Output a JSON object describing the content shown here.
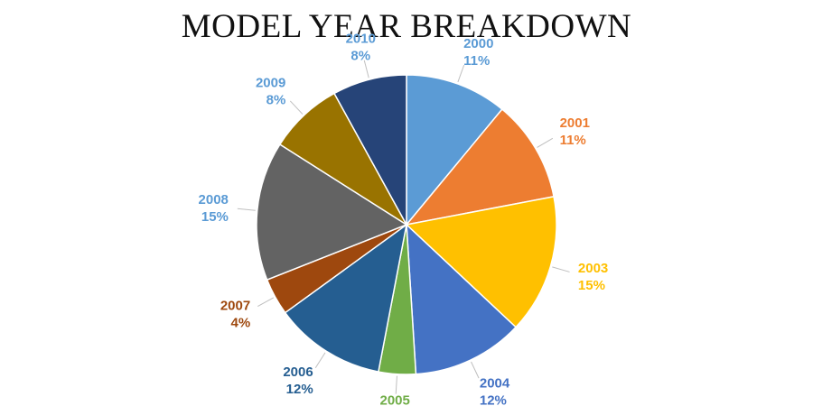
{
  "chart_data": {
    "type": "pie",
    "title": "MODEL YEAR BREAKDOWN",
    "slices": [
      {
        "label": "2000",
        "value": 11,
        "percent": "11%",
        "color": "#5b9bd5",
        "label_color": "#5b9bd5"
      },
      {
        "label": "2001",
        "value": 11,
        "percent": "11%",
        "color": "#ed7d31",
        "label_color": "#ed7d31"
      },
      {
        "label": "2003",
        "value": 15,
        "percent": "15%",
        "color": "#ffc000",
        "label_color": "#ffc000"
      },
      {
        "label": "2004",
        "value": 12,
        "percent": "12%",
        "color": "#4472c4",
        "label_color": "#4472c4"
      },
      {
        "label": "2005",
        "value": 4,
        "percent": "4%",
        "color": "#70ad47",
        "label_color": "#70ad47"
      },
      {
        "label": "2006",
        "value": 12,
        "percent": "12%",
        "color": "#255e91",
        "label_color": "#255e91"
      },
      {
        "label": "2007",
        "value": 4,
        "percent": "4%",
        "color": "#9e480e",
        "label_color": "#9e480e"
      },
      {
        "label": "2008",
        "value": 15,
        "percent": "15%",
        "color": "#636363",
        "label_color": "#5b9bd5"
      },
      {
        "label": "2009",
        "value": 8,
        "percent": "8%",
        "color": "#997300",
        "label_color": "#5b9bd5"
      },
      {
        "label": "2010",
        "value": 8,
        "percent": "8%",
        "color": "#264478",
        "label_color": "#5b9bd5"
      }
    ]
  }
}
